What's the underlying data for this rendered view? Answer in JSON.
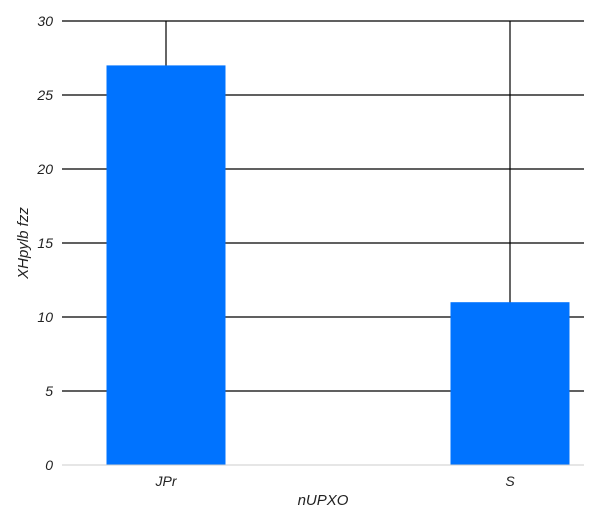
{
  "chart_data": {
    "type": "bar",
    "categories": [
      "JPr",
      "S"
    ],
    "values": [
      27,
      11
    ],
    "title": "",
    "xlabel": "nUPXO",
    "ylabel": "XHpylb fzz",
    "ylim": [
      0,
      30
    ],
    "yticks": [
      0,
      5,
      10,
      15,
      20,
      25,
      30
    ],
    "grid": "both",
    "legend": "none",
    "bar_color": "#0073FF",
    "grid_color": "#000000",
    "baseline_color": "#CCCCCC"
  }
}
